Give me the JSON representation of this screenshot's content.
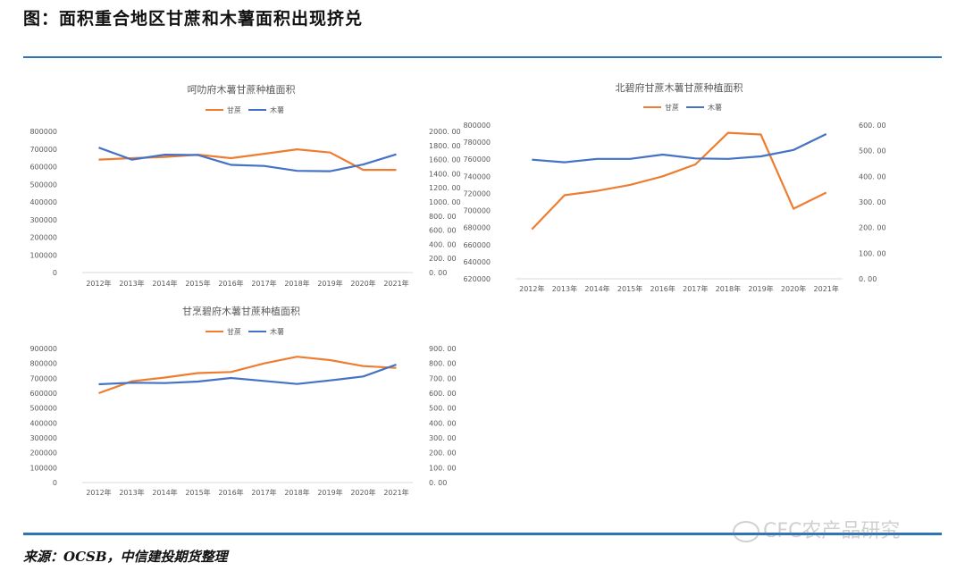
{
  "page": {
    "title": "图：面积重合地区甘蔗和木薯面积出现挤兑",
    "source": "来源：OCSB，中信建投期货整理",
    "watermark": "CFC农产品研究"
  },
  "colors": {
    "sugarcane": "#ed7d31",
    "cassava": "#4472c4",
    "axis": "#d9d9d9",
    "text": "#595959"
  },
  "chart_data": [
    {
      "type": "line",
      "title": "呵叻府木薯甘蔗种植面积",
      "legend": [
        "甘蔗",
        "木薯"
      ],
      "legend_position": "top-center",
      "categories": [
        "2012年",
        "2013年",
        "2014年",
        "2015年",
        "2016年",
        "2017年",
        "2018年",
        "2019年",
        "2020年",
        "2021年"
      ],
      "y_left": {
        "ticks": [
          "0",
          "100000",
          "200000",
          "300000",
          "400000",
          "500000",
          "600000",
          "700000",
          "800000"
        ],
        "range": [
          0,
          800000
        ]
      },
      "y_right": {
        "ticks": [
          "0. 00",
          "200. 00",
          "400. 00",
          "600. 00",
          "800. 00",
          "1000. 00",
          "1200. 00",
          "1400. 00",
          "1600. 00",
          "1800. 00",
          "2000. 00"
        ],
        "range": [
          0,
          2000
        ]
      },
      "series": [
        {
          "name": "甘蔗",
          "axis": "left",
          "values": [
            640000,
            648000,
            655000,
            668000,
            648000,
            673000,
            698000,
            680000,
            582000,
            582000
          ]
        },
        {
          "name": "木薯",
          "axis": "right",
          "values": [
            1770,
            1600,
            1670,
            1665,
            1525,
            1510,
            1440,
            1435,
            1530,
            1675
          ]
        }
      ]
    },
    {
      "type": "line",
      "title": "北碧府甘蔗木薯甘蔗种植面积",
      "legend": [
        "甘蔗",
        "木薯"
      ],
      "legend_position": "top-center",
      "categories": [
        "2012年",
        "2013年",
        "2014年",
        "2015年",
        "2016年",
        "2017年",
        "2018年",
        "2019年",
        "2020年",
        "2021年"
      ],
      "y_left": {
        "ticks": [
          "620000",
          "640000",
          "660000",
          "680000",
          "700000",
          "720000",
          "740000",
          "760000",
          "780000",
          "800000"
        ],
        "range": [
          620000,
          800000
        ]
      },
      "y_right": {
        "ticks": [
          "0. 00",
          "100. 00",
          "200. 00",
          "300. 00",
          "400. 00",
          "500. 00",
          "600. 00"
        ],
        "range": [
          0,
          600
        ]
      },
      "series": [
        {
          "name": "甘蔗",
          "axis": "left",
          "values": [
            678000,
            718000,
            723000,
            730000,
            740000,
            754000,
            791000,
            789000,
            702000,
            721000
          ]
        },
        {
          "name": "木薯",
          "axis": "right",
          "values": [
            465,
            455,
            468,
            468,
            485,
            470,
            468,
            478,
            503,
            565
          ]
        }
      ]
    },
    {
      "type": "line",
      "title": "甘烹碧府木薯甘蔗种植面积",
      "legend": [
        "甘蔗",
        "木薯"
      ],
      "legend_position": "top-center",
      "categories": [
        "2012年",
        "2013年",
        "2014年",
        "2015年",
        "2016年",
        "2017年",
        "2018年",
        "2019年",
        "2020年",
        "2021年"
      ],
      "y_left": {
        "ticks": [
          "0",
          "100000",
          "200000",
          "300000",
          "400000",
          "500000",
          "600000",
          "700000",
          "800000",
          "900000"
        ],
        "range": [
          0,
          900000
        ]
      },
      "y_right": {
        "ticks": [
          "0. 00",
          "100. 00",
          "200. 00",
          "300. 00",
          "400. 00",
          "500. 00",
          "600. 00",
          "700. 00",
          "800. 00",
          "900. 00"
        ],
        "range": [
          0,
          900
        ]
      },
      "series": [
        {
          "name": "甘蔗",
          "axis": "left",
          "values": [
            600000,
            680000,
            705000,
            735000,
            742000,
            800000,
            845000,
            822000,
            782000,
            770000
          ]
        },
        {
          "name": "木薯",
          "axis": "right",
          "values": [
            660,
            670,
            668,
            678,
            702,
            682,
            662,
            686,
            712,
            792
          ]
        }
      ]
    }
  ]
}
